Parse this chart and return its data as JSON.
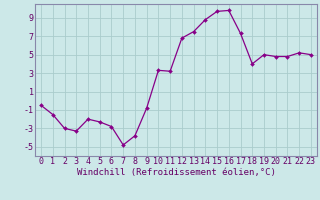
{
  "x": [
    0,
    1,
    2,
    3,
    4,
    5,
    6,
    7,
    8,
    9,
    10,
    11,
    12,
    13,
    14,
    15,
    16,
    17,
    18,
    19,
    20,
    21,
    22,
    23
  ],
  "y": [
    -0.5,
    -1.5,
    -3.0,
    -3.3,
    -2.0,
    -2.3,
    -2.8,
    -4.8,
    -3.8,
    -0.8,
    3.3,
    3.2,
    6.8,
    7.5,
    8.8,
    9.7,
    9.8,
    7.3,
    4.0,
    5.0,
    4.8,
    4.8,
    5.2,
    5.0
  ],
  "line_color": "#880088",
  "marker": "D",
  "marker_size": 2.0,
  "bg_color": "#cce8e8",
  "grid_color": "#aacccc",
  "spine_color": "#8888aa",
  "xlabel": "Windchill (Refroidissement éolien,°C)",
  "xlabel_fontsize": 6.5,
  "tick_fontsize": 6,
  "ylim": [
    -6,
    10.5
  ],
  "yticks": [
    -5,
    -3,
    -1,
    1,
    3,
    5,
    7,
    9
  ],
  "xlim": [
    -0.5,
    23.5
  ],
  "xticks": [
    0,
    1,
    2,
    3,
    4,
    5,
    6,
    7,
    8,
    9,
    10,
    11,
    12,
    13,
    14,
    15,
    16,
    17,
    18,
    19,
    20,
    21,
    22,
    23
  ]
}
